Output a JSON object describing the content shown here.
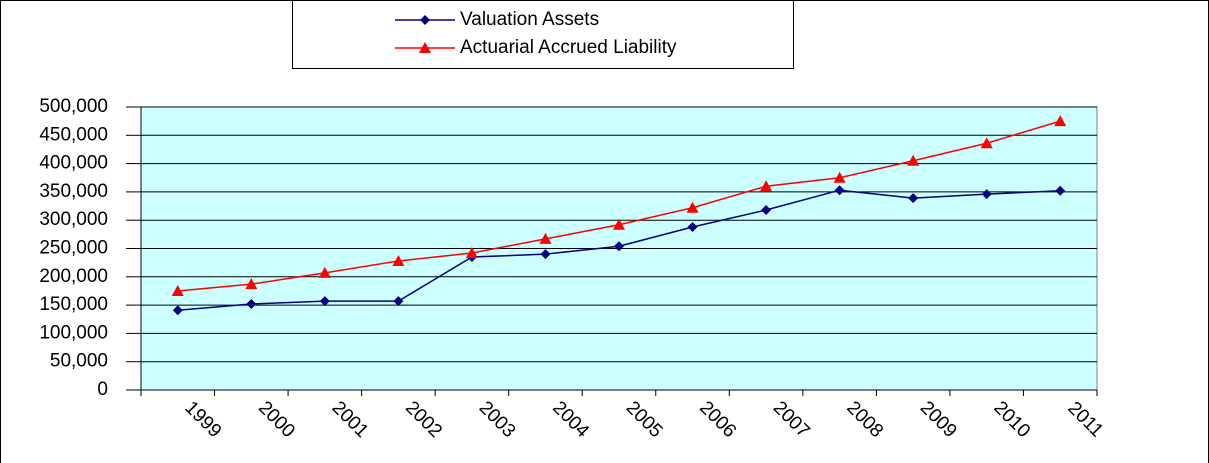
{
  "chart_data": {
    "type": "line",
    "categories": [
      "1999",
      "2000",
      "2001",
      "2002",
      "2003",
      "2004",
      "2005",
      "2006",
      "2007",
      "2008",
      "2009",
      "2010",
      "2011"
    ],
    "series": [
      {
        "name": "Valuation Assets",
        "color": "#000080",
        "marker": "diamond",
        "values": [
          141000,
          152000,
          157000,
          157000,
          235000,
          240000,
          254000,
          288000,
          318000,
          353000,
          339000,
          346000,
          352000
        ]
      },
      {
        "name": "Actuarial Accrued Liability",
        "color": "#ff0000",
        "marker": "triangle",
        "values": [
          175000,
          187000,
          207000,
          228000,
          242000,
          267000,
          292000,
          322000,
          360000,
          375000,
          405000,
          436000,
          475000
        ]
      }
    ],
    "ylim": [
      0,
      500000
    ],
    "yticks": [
      0,
      {
        "value": 50000,
        "label": "50,000"
      },
      {
        "value": 100000,
        "label": "100,000"
      },
      {
        "value": 150000,
        "label": "150,000"
      },
      {
        "value": 200000,
        "label": "200,000"
      },
      {
        "value": 250000,
        "label": "250,000"
      },
      {
        "value": 300000,
        "label": "300,000"
      },
      {
        "value": 350000,
        "label": "350,000"
      },
      {
        "value": 400000,
        "label": "400,000"
      },
      {
        "value": 450000,
        "label": "450,000"
      },
      {
        "value": 500000,
        "label": "500,000"
      }
    ],
    "grid": true,
    "legend": "top",
    "plot_background": "#ccffff"
  }
}
